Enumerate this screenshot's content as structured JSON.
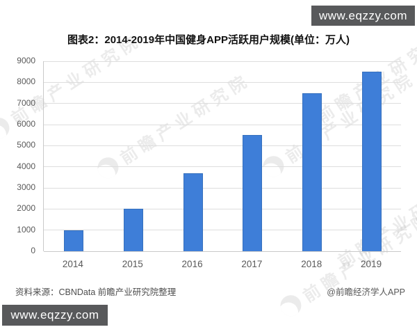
{
  "badges": {
    "top_right_label": "www.eqzzy.com",
    "bottom_left_label": "www.eqzzy.com",
    "bg_color": "#58595b",
    "text_color": "#ffffff"
  },
  "title": "图表2：2014-2019年中国健身APP活跃用户规模(单位：万人)",
  "chart_data": {
    "type": "bar",
    "title": "图表2：2014-2019年中国健身APP活跃用户规模(单位：万人)",
    "unit": "万人",
    "categories": [
      "2014",
      "2015",
      "2016",
      "2017",
      "2018",
      "2019"
    ],
    "values": [
      1000,
      2000,
      3700,
      5500,
      7500,
      8500
    ],
    "xlabel": "",
    "ylabel": "",
    "ylim": [
      0,
      9000
    ],
    "yticks": [
      0,
      1000,
      2000,
      3000,
      4000,
      5000,
      6000,
      7000,
      8000,
      9000
    ],
    "grid": true,
    "legend": "none",
    "bar_color": "#3e7ed8",
    "gridline_color": "#dddddd",
    "tick_label_color": "#595959"
  },
  "watermark": {
    "text": "前瞻产业研究院"
  },
  "footer": {
    "source": "资料来源：CBNData 前瞻产业研究院整理",
    "credit": "@前瞻经济学人APP"
  }
}
